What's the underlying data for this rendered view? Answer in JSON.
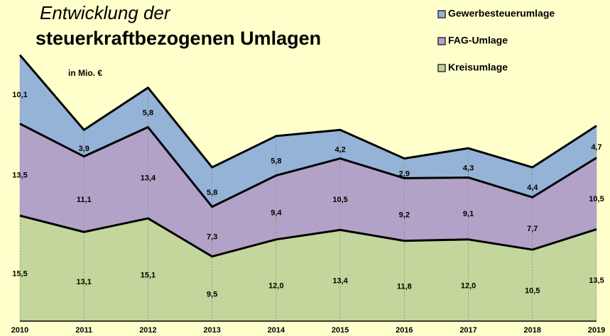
{
  "chart_data": {
    "type": "stacked_area",
    "title": "Entwicklung der",
    "subtitle": "steuerkraftbezogenen Umlagen",
    "annotation": "in Mio. €",
    "categories": [
      "2010",
      "2011",
      "2012",
      "2013",
      "2014",
      "2015",
      "2016",
      "2017",
      "2018",
      "2019"
    ],
    "series": [
      {
        "name": "Kreisumlage",
        "color": "#c3d69b",
        "values": [
          15.5,
          13.1,
          15.1,
          9.5,
          12.0,
          13.4,
          11.8,
          12.0,
          10.5,
          13.5
        ],
        "value_labels": [
          "15,5",
          "13,1",
          "15,1",
          "9,5",
          "12,0",
          "13,4",
          "11,8",
          "12,0",
          "10,5",
          "13,5"
        ]
      },
      {
        "name": "FAG-Umlage",
        "color": "#b3a2c7",
        "values": [
          13.5,
          11.1,
          13.4,
          7.3,
          9.4,
          10.5,
          9.2,
          9.1,
          7.7,
          10.5
        ],
        "value_labels": [
          "13,5",
          "11,1",
          "13,4",
          "7,3",
          "9,4",
          "10,5",
          "9,2",
          "9,1",
          "7,7",
          "10,5"
        ]
      },
      {
        "name": "Gewerbesteuerumlage",
        "color": "#95b3d7",
        "values": [
          10.1,
          3.9,
          5.8,
          5.8,
          5.8,
          4.2,
          2.9,
          4.3,
          4.4,
          4.7
        ],
        "value_labels": [
          "10,1",
          "3,9",
          "5,8",
          "5,8",
          "5,8",
          "4,2",
          "2,9",
          "4,3",
          "4,4",
          "4,7"
        ]
      }
    ],
    "ylim": [
      0,
      40
    ],
    "grid": true
  }
}
